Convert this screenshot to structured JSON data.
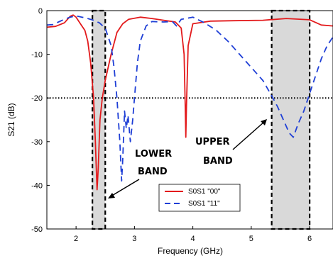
{
  "chart_data": {
    "type": "line",
    "xlabel": "Frequency (GHz)",
    "ylabel": "S21 (dB)",
    "xlim": [
      1.5,
      6.4
    ],
    "ylim": [
      -50,
      0
    ],
    "x_ticks": [
      2,
      3,
      4,
      5,
      6
    ],
    "y_ticks": [
      0,
      -10,
      -20,
      -30,
      -40,
      -50
    ],
    "grid": false,
    "legend_position": "bottom-center",
    "threshold": {
      "y": -20,
      "style": "dotted"
    },
    "bands": [
      {
        "label": "LOWER BAND",
        "x_range": [
          2.28,
          2.5
        ]
      },
      {
        "label": "UPPER BAND",
        "x_range": [
          5.35,
          6.0
        ]
      }
    ],
    "annotations": [
      {
        "text": "LOWER",
        "key": "lower_1"
      },
      {
        "text": "BAND",
        "key": "lower_2"
      },
      {
        "text": "UPPER",
        "key": "upper_1"
      },
      {
        "text": "BAND",
        "key": "upper_2"
      }
    ],
    "series": [
      {
        "name": "S0S1 \"00\"",
        "color": "#e31a1c",
        "style": "solid",
        "points": [
          [
            1.5,
            -3.8
          ],
          [
            1.65,
            -3.6
          ],
          [
            1.8,
            -2.8
          ],
          [
            1.9,
            -1.3
          ],
          [
            1.95,
            -1.0
          ],
          [
            2.0,
            -1.5
          ],
          [
            2.05,
            -2.5
          ],
          [
            2.1,
            -3.5
          ],
          [
            2.15,
            -4.5
          ],
          [
            2.2,
            -7
          ],
          [
            2.25,
            -12
          ],
          [
            2.3,
            -20
          ],
          [
            2.33,
            -30
          ],
          [
            2.36,
            -41
          ],
          [
            2.38,
            -36
          ],
          [
            2.41,
            -25
          ],
          [
            2.45,
            -20
          ],
          [
            2.5,
            -16
          ],
          [
            2.6,
            -10
          ],
          [
            2.7,
            -5
          ],
          [
            2.8,
            -3
          ],
          [
            2.9,
            -2
          ],
          [
            3.1,
            -1.5
          ],
          [
            3.3,
            -1.8
          ],
          [
            3.5,
            -2.2
          ],
          [
            3.7,
            -2.6
          ],
          [
            3.8,
            -4
          ],
          [
            3.85,
            -10
          ],
          [
            3.87,
            -22
          ],
          [
            3.88,
            -29
          ],
          [
            3.89,
            -22
          ],
          [
            3.92,
            -8
          ],
          [
            4.0,
            -3
          ],
          [
            4.3,
            -2.4
          ],
          [
            4.7,
            -2.3
          ],
          [
            5.2,
            -2.2
          ],
          [
            5.6,
            -1.8
          ],
          [
            6.0,
            -2.1
          ],
          [
            6.2,
            -3.3
          ],
          [
            6.4,
            -3.5
          ]
        ]
      },
      {
        "name": "S0S1 \"11\"",
        "color": "#1f3fd6",
        "style": "dashed",
        "points": [
          [
            1.5,
            -3.3
          ],
          [
            1.6,
            -3.2
          ],
          [
            1.7,
            -2.6
          ],
          [
            1.8,
            -2.0
          ],
          [
            1.9,
            -1.5
          ],
          [
            2.0,
            -1.2
          ],
          [
            2.1,
            -1.5
          ],
          [
            2.2,
            -1.8
          ],
          [
            2.3,
            -2.2
          ],
          [
            2.4,
            -2.8
          ],
          [
            2.5,
            -4
          ],
          [
            2.6,
            -8
          ],
          [
            2.65,
            -13
          ],
          [
            2.7,
            -20
          ],
          [
            2.75,
            -30
          ],
          [
            2.78,
            -39
          ],
          [
            2.8,
            -34
          ],
          [
            2.83,
            -23
          ],
          [
            2.86,
            -27
          ],
          [
            2.89,
            -24
          ],
          [
            2.93,
            -30
          ],
          [
            2.97,
            -25
          ],
          [
            3.0,
            -20
          ],
          [
            3.05,
            -12
          ],
          [
            3.1,
            -7
          ],
          [
            3.2,
            -3.5
          ],
          [
            3.3,
            -2.5
          ],
          [
            3.5,
            -2.6
          ],
          [
            3.65,
            -2.5
          ],
          [
            3.72,
            -3.5
          ],
          [
            3.8,
            -2.0
          ],
          [
            4.0,
            -1.5
          ],
          [
            4.2,
            -2.8
          ],
          [
            4.4,
            -4.5
          ],
          [
            4.6,
            -7
          ],
          [
            4.8,
            -10
          ],
          [
            5.0,
            -13
          ],
          [
            5.2,
            -16
          ],
          [
            5.35,
            -19.5
          ],
          [
            5.45,
            -22
          ],
          [
            5.55,
            -25
          ],
          [
            5.65,
            -28
          ],
          [
            5.72,
            -29
          ],
          [
            5.8,
            -26
          ],
          [
            5.9,
            -23
          ],
          [
            6.0,
            -19
          ],
          [
            6.1,
            -15
          ],
          [
            6.2,
            -11
          ],
          [
            6.3,
            -8
          ],
          [
            6.4,
            -6
          ]
        ]
      }
    ]
  }
}
